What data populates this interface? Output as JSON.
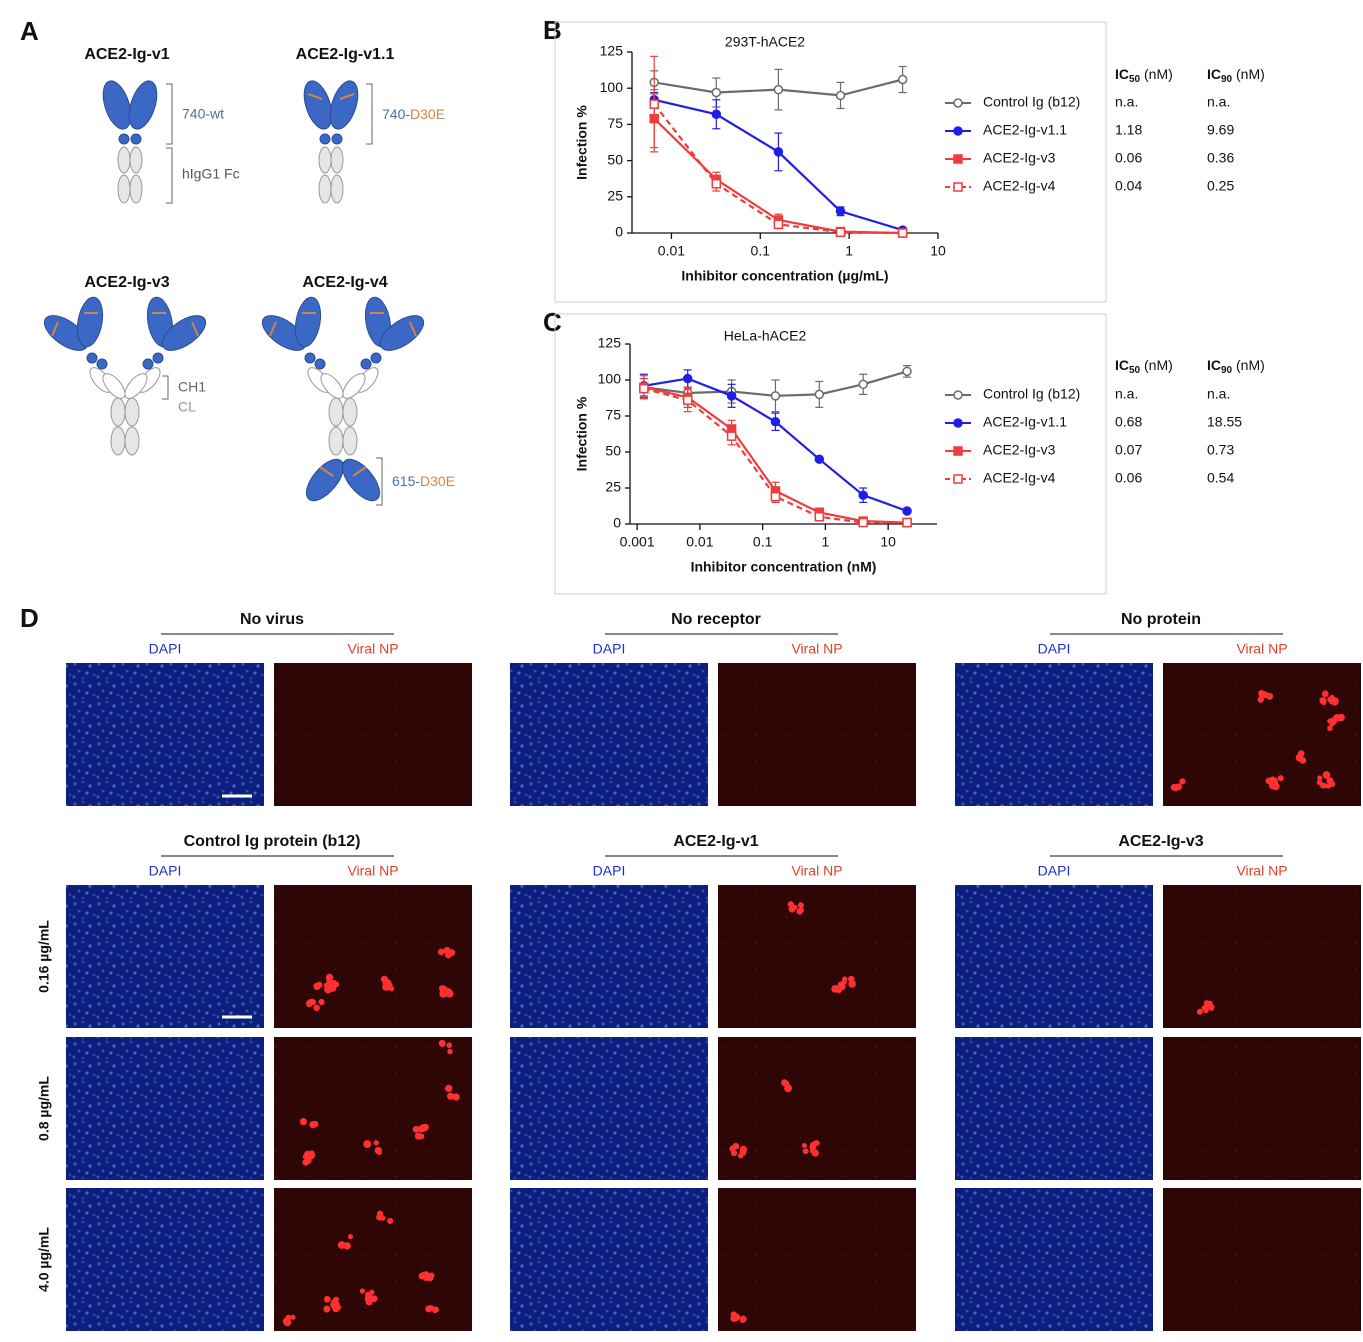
{
  "panel_letters": [
    "A",
    "B",
    "C",
    "D"
  ],
  "panel_a": {
    "titles": [
      "ACE2-Ig-v1",
      "ACE2-Ig-v1.1",
      "ACE2-Ig-v3",
      "ACE2-Ig-v4"
    ],
    "wt_label": "740-wt",
    "fc_label": "hIgG1 Fc",
    "v11_prefix": "740-",
    "v11_mutation": "D30E",
    "ch1_label": "CH1",
    "cl_label": "CL",
    "v4_prefix": "615-",
    "v4_mutation": "D30E"
  },
  "chart_data": [
    {
      "type": "line",
      "title": "293T-hACE2",
      "x_label": "Inhibitor concentration (µg/mL)",
      "y_label": "Infection %",
      "x": [
        0.0064,
        0.032,
        0.16,
        0.8,
        4.0
      ],
      "log_x": true,
      "xlim": [
        0.0036,
        10
      ],
      "xticks": [
        0.01,
        0.1,
        1,
        10
      ],
      "ylim": [
        0,
        125
      ],
      "yticks": [
        0,
        25,
        50,
        75,
        100,
        125
      ],
      "ic_headers": [
        {
          "main": "IC",
          "sub": "50",
          "unit": " (nM)"
        },
        {
          "main": "IC",
          "sub": "90",
          "unit": " (nM)"
        }
      ],
      "series": [
        {
          "name": "Control Ig (b12)",
          "color": "#6b6b6b",
          "marker": "circle",
          "filled": false,
          "dashed": false,
          "values": [
            104,
            97,
            99,
            95,
            106
          ],
          "errors": [
            8,
            10,
            14,
            9,
            9
          ],
          "ic50": "n.a.",
          "ic90": "n.a."
        },
        {
          "name": "ACE2-Ig-v1.1",
          "color": "#1f1fe6",
          "marker": "circle",
          "filled": true,
          "dashed": false,
          "values": [
            92,
            82,
            56,
            15,
            2
          ],
          "errors": [
            5,
            10,
            13,
            3,
            1
          ],
          "ic50": 1.18,
          "ic90": 9.69
        },
        {
          "name": "ACE2-Ig-v3",
          "color": "#f03c3c",
          "marker": "square",
          "filled": true,
          "dashed": false,
          "values": [
            79,
            37,
            9,
            1,
            0
          ],
          "errors": [
            20,
            5,
            4,
            1,
            0
          ],
          "ic50": 0.06,
          "ic90": 0.36
        },
        {
          "name": "ACE2-Ig-v4",
          "color": "#f03c3c",
          "marker": "square",
          "filled": false,
          "dashed": true,
          "values": [
            89,
            34,
            6,
            0.5,
            0
          ],
          "errors": [
            33,
            5,
            3,
            1,
            0
          ],
          "ic50": 0.04,
          "ic90": 0.25
        }
      ]
    },
    {
      "type": "line",
      "title": "HeLa-hACE2",
      "x_label": "Inhibitor concentration (nM)",
      "y_label": "Infection %",
      "x": [
        0.00128,
        0.0064,
        0.032,
        0.16,
        0.8,
        4,
        20
      ],
      "log_x": true,
      "xlim": [
        0.00077,
        60
      ],
      "xticks": [
        0.001,
        0.01,
        0.1,
        1,
        10
      ],
      "ylim": [
        0,
        125
      ],
      "yticks": [
        0,
        25,
        50,
        75,
        100,
        125
      ],
      "ic_headers": [
        {
          "main": "IC",
          "sub": "50",
          "unit": " (nM)"
        },
        {
          "main": "IC",
          "sub": "90",
          "unit": " (nM)"
        }
      ],
      "series": [
        {
          "name": "Control Ig (b12)",
          "color": "#6b6b6b",
          "marker": "circle",
          "filled": false,
          "dashed": false,
          "values": [
            95,
            91,
            92,
            89,
            90,
            97,
            106
          ],
          "errors": [
            6,
            10,
            8,
            11,
            9,
            7,
            4
          ],
          "ic50": "n.a.",
          "ic90": "n.a."
        },
        {
          "name": "ACE2-Ig-v1.1",
          "color": "#1f1fe6",
          "marker": "circle",
          "filled": true,
          "dashed": false,
          "values": [
            96,
            101,
            89,
            71,
            45,
            20,
            9
          ],
          "errors": [
            8,
            6,
            8,
            6,
            1,
            5,
            1
          ],
          "ic50": 0.68,
          "ic90": 18.55
        },
        {
          "name": "ACE2-Ig-v3",
          "color": "#f03c3c",
          "marker": "square",
          "filled": true,
          "dashed": false,
          "values": [
            95,
            88,
            66,
            23,
            8,
            2,
            1
          ],
          "errors": [
            8,
            7,
            6,
            6,
            3,
            2,
            1
          ],
          "ic50": 0.07,
          "ic90": 0.73
        },
        {
          "name": "ACE2-Ig-v4",
          "color": "#f03c3c",
          "marker": "square",
          "filled": false,
          "dashed": true,
          "values": [
            94,
            86,
            61,
            19,
            5,
            1,
            1
          ],
          "errors": [
            7,
            8,
            6,
            4,
            2,
            1,
            1
          ],
          "ic50": 0.06,
          "ic90": 0.54
        }
      ]
    }
  ],
  "panel_d": {
    "groups": [
      {
        "title": "No virus",
        "channels": [
          "DAPI",
          "Viral NP"
        ]
      },
      {
        "title": "No receptor",
        "channels": [
          "DAPI",
          "Viral NP"
        ]
      },
      {
        "title": "No protein",
        "channels": [
          "DAPI",
          "Viral NP"
        ]
      },
      {
        "title": "Control Ig protein (b12)",
        "channels": [
          "DAPI",
          "Viral NP"
        ]
      },
      {
        "title": "ACE2-Ig-v1",
        "channels": [
          "DAPI",
          "Viral NP"
        ]
      },
      {
        "title": "ACE2-Ig-v3",
        "channels": [
          "DAPI",
          "Viral NP"
        ]
      }
    ],
    "dose_labels": [
      "0.16 µg/mL",
      "0.8 µg/mL",
      "4.0 µg/mL"
    ]
  }
}
